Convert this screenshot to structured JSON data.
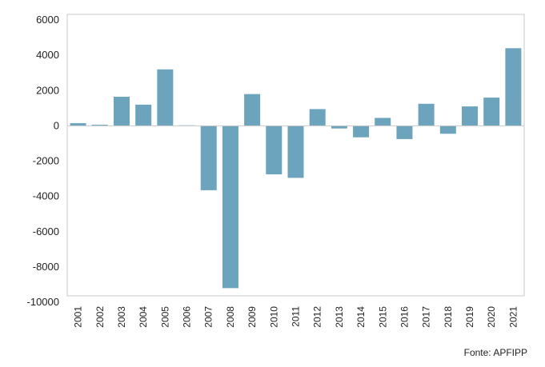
{
  "chart_data": {
    "type": "bar",
    "categories": [
      "2001",
      "2002",
      "2003",
      "2004",
      "2005",
      "2006",
      "2007",
      "2008",
      "2009",
      "2010",
      "2011",
      "2012",
      "2013",
      "2014",
      "2015",
      "2016",
      "2017",
      "2018",
      "2019",
      "2020",
      "2021"
    ],
    "values": [
      150,
      60,
      1650,
      1200,
      3200,
      30,
      -3650,
      -9200,
      1800,
      -2750,
      -2950,
      950,
      -150,
      -650,
      450,
      -750,
      1250,
      -450,
      1100,
      1600,
      4400
    ],
    "ylim": [
      -10000,
      6000
    ],
    "yticks": [
      6000,
      4000,
      2000,
      0,
      -2000,
      -4000,
      -6000,
      -8000,
      -10000
    ],
    "bar_color": "#6ca3bd",
    "grid": false,
    "legend": "none"
  },
  "source_label": "Fonte: APFIPP"
}
